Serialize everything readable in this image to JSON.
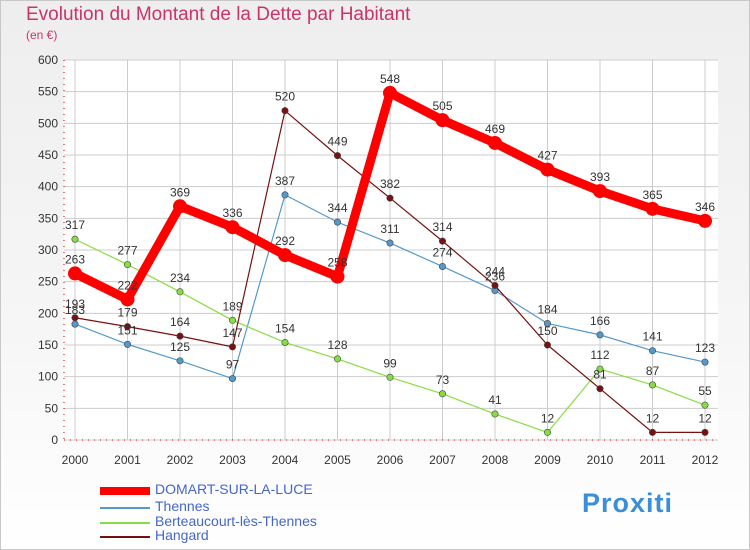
{
  "header": {
    "title": "Evolution du Montant de la Dette par Habitant",
    "subtitle": "(en €)"
  },
  "logo": {
    "text": "Proxiti"
  },
  "colors": {
    "title": "#cc3366",
    "legend_text": "#4466cc",
    "grid": "#cccccc",
    "axis": "#c00000"
  },
  "chart_data": {
    "type": "line",
    "x": [
      "2000",
      "2001",
      "2002",
      "2003",
      "2004",
      "2005",
      "2006",
      "2007",
      "2008",
      "2009",
      "2010",
      "2011",
      "2012"
    ],
    "ylim": [
      0,
      600
    ],
    "yticks": [
      0,
      50,
      100,
      150,
      200,
      250,
      300,
      350,
      400,
      450,
      500,
      550,
      600
    ],
    "grid": true,
    "legend_position": "bottom-left",
    "series": [
      {
        "name": "DOMART-SUR-LA-LUCE",
        "color": "#ff0000",
        "highlight": true,
        "values": [
          263,
          222,
          369,
          336,
          292,
          258,
          548,
          505,
          469,
          427,
          393,
          365,
          346
        ],
        "labels": [
          "263",
          "222",
          "369",
          "336",
          "292",
          "258",
          "548",
          "505",
          "469",
          "427",
          "393",
          "365",
          "346"
        ]
      },
      {
        "name": "Thennes",
        "color": "#5599cc",
        "values": [
          183,
          151,
          125,
          97,
          387,
          344,
          311,
          274,
          236,
          184,
          166,
          141,
          123
        ],
        "labels": [
          "183",
          "151",
          "125",
          "97",
          "387",
          "344",
          "311",
          "274",
          "236",
          "184",
          "166",
          "141",
          "123"
        ]
      },
      {
        "name": "Berteaucourt-lès-Thennes",
        "color": "#88dd44",
        "values": [
          317,
          277,
          234,
          189,
          154,
          128,
          99,
          73,
          41,
          12,
          112,
          87,
          55
        ],
        "labels": [
          "317",
          "277",
          "234",
          "189",
          "154",
          "128",
          "99",
          "73",
          "41",
          "12",
          "112",
          "87",
          "55"
        ]
      },
      {
        "name": "Hangard",
        "color": "#771111",
        "values": [
          193,
          179,
          164,
          147,
          520,
          449,
          382,
          314,
          244,
          150,
          81,
          12,
          12
        ],
        "labels": [
          "193",
          "179",
          "164",
          "147",
          "520",
          "449",
          "382",
          "314",
          "244",
          "150",
          "81",
          "12",
          "12"
        ]
      }
    ]
  }
}
